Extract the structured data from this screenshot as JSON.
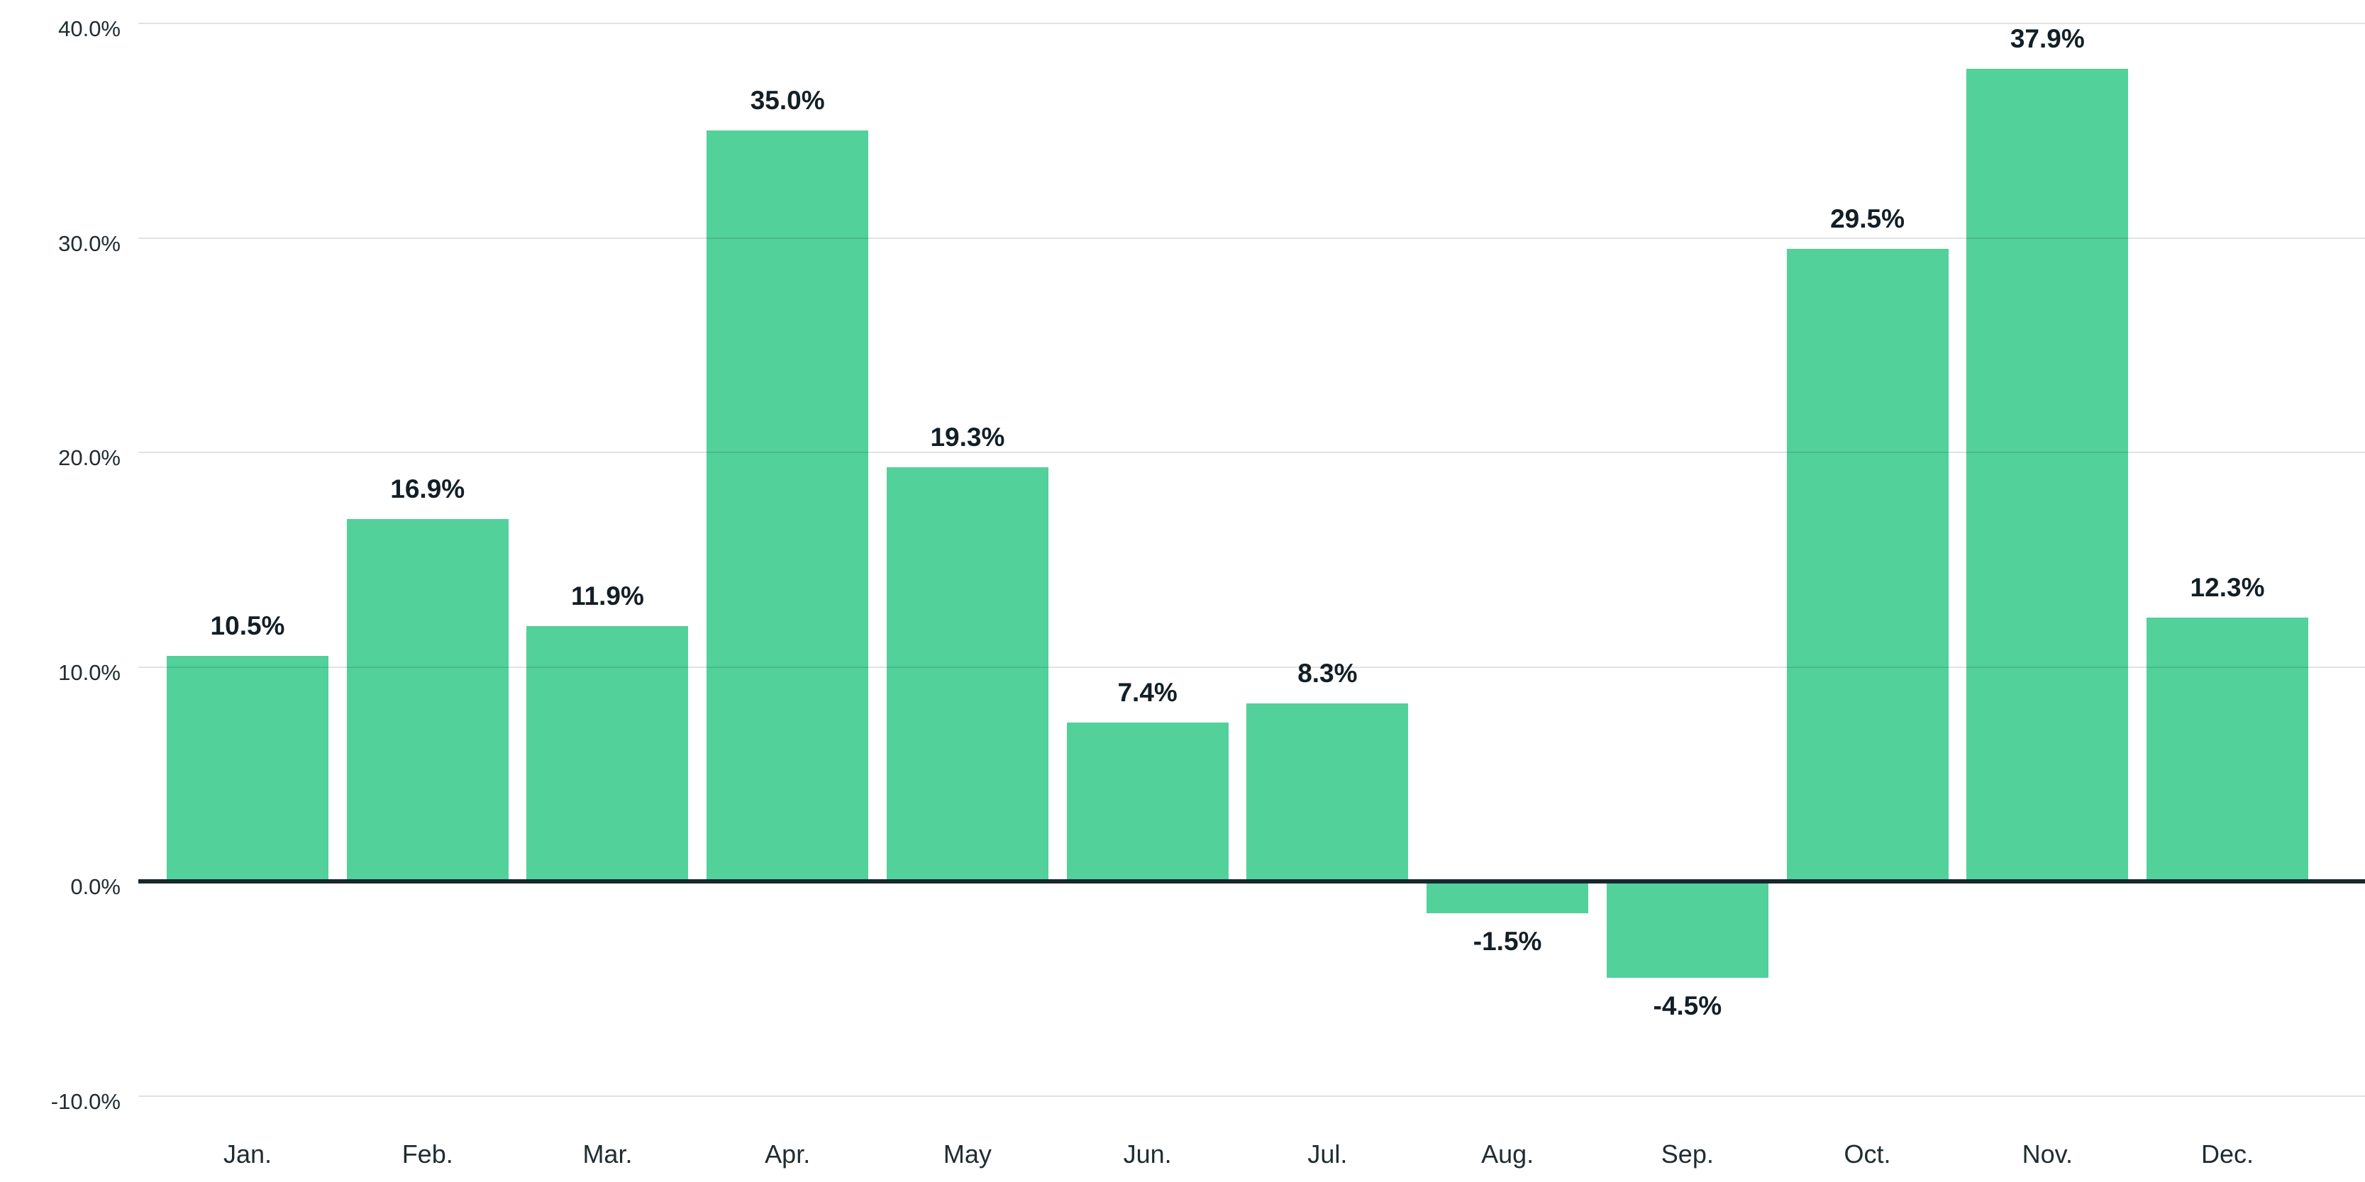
{
  "chart_data": {
    "type": "bar",
    "title": "",
    "xlabel": "",
    "ylabel": "",
    "categories": [
      "Jan.",
      "Feb.",
      "Mar.",
      "Apr.",
      "May",
      "Jun.",
      "Jul.",
      "Aug.",
      "Sep.",
      "Oct.",
      "Nov.",
      "Dec."
    ],
    "values": [
      10.5,
      16.9,
      11.9,
      35.0,
      19.3,
      7.4,
      8.3,
      -1.5,
      -4.5,
      29.5,
      37.9,
      12.3
    ],
    "value_labels": [
      "10.5%",
      "16.9%",
      "11.9%",
      "35.0%",
      "19.3%",
      "7.4%",
      "8.3%",
      "-1.5%",
      "-4.5%",
      "29.5%",
      "37.9%",
      "12.3%"
    ],
    "y_ticks": [
      {
        "value": 40,
        "label": "40.0%"
      },
      {
        "value": 30,
        "label": "30.0%"
      },
      {
        "value": 20,
        "label": "20.0%"
      },
      {
        "value": 10,
        "label": "10.0%"
      },
      {
        "value": 0,
        "label": "0.0%"
      },
      {
        "value": -10,
        "label": "-10.0%"
      }
    ],
    "ylim": [
      -10,
      40
    ],
    "grid": "horizontal, drawn above bars",
    "legend_position": "none",
    "colors": {
      "bar": "#52d19b",
      "zero_line": "#17272e",
      "gridline": "#e0e0e0",
      "axis_text": "#212c31",
      "value_text": "#131f26",
      "background": "#ffffff"
    }
  }
}
